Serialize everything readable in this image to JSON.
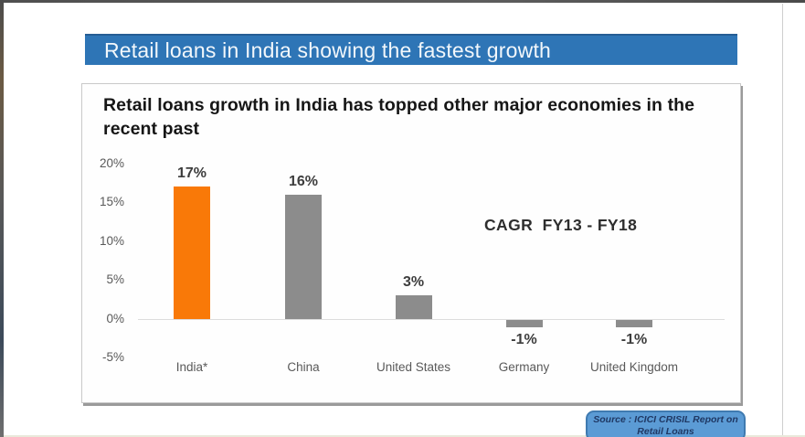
{
  "slide": {
    "banner": {
      "title": "Retail loans in India showing the fastest growth",
      "bg_color": "#2E75B6",
      "text_color": "#F2F7FB"
    },
    "source_note": {
      "line1": "Source :  ICICI CRISIL Report on",
      "line2": "Retail Loans",
      "bg_color": "#5B9BD5",
      "text_color": "#1F3864"
    }
  },
  "chart_data": {
    "type": "bar",
    "title": "Retail loans growth in India has topped other major economies in the recent past",
    "annotation": "CAGR  FY13 - FY18",
    "categories": [
      "India*",
      "China",
      "United States",
      "Germany",
      "United Kingdom"
    ],
    "values": [
      17,
      16,
      3,
      -1,
      -1
    ],
    "value_labels": [
      "17%",
      "16%",
      "3%",
      "-1%",
      "-1%"
    ],
    "bar_colors": [
      "#F97908",
      "#8C8C8C",
      "#8C8C8C",
      "#8C8C8C",
      "#8C8C8C"
    ],
    "highlight_color": "#F97908",
    "default_bar_color": "#8C8C8C",
    "xlabel": "",
    "ylabel": "",
    "ylim": [
      -5,
      20
    ],
    "yticks": [
      20,
      15,
      10,
      5,
      0,
      -5
    ],
    "ytick_labels": [
      "20%",
      "15%",
      "10%",
      "5%",
      "0%",
      "-5%"
    ],
    "grid": false,
    "legend": "none"
  }
}
